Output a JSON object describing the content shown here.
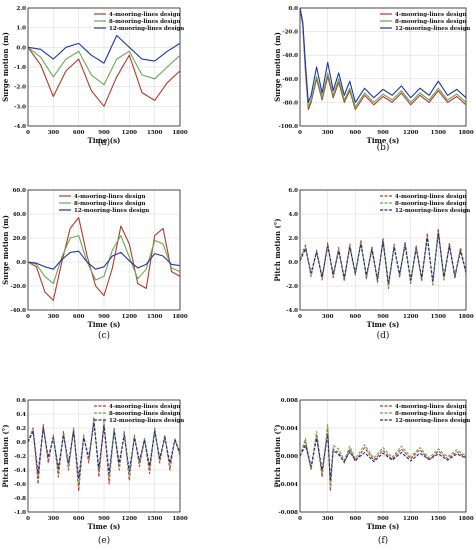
{
  "chart_data": [
    {
      "panel": "(a)",
      "type": "line",
      "ylabel": "Surge motion (m)",
      "xlabel": "Time (s)",
      "xlim": [
        0,
        1800
      ],
      "ylim": [
        -4.0,
        2.0
      ],
      "xticks": [
        "0",
        "300",
        "600",
        "900",
        "1200",
        "1500",
        "1800"
      ],
      "yticks": [
        "2.0",
        "1.0",
        "0.0",
        "-1.0",
        "-2.0",
        "-3.0",
        "-4.0"
      ],
      "legend_position": "top-right",
      "line_style": "solid",
      "x": [
        0,
        150,
        300,
        450,
        600,
        750,
        900,
        1050,
        1200,
        1350,
        1500,
        1650,
        1800
      ],
      "series": [
        {
          "name": "4-mooring-lines design",
          "color": "#b03a2e",
          "values": [
            0.0,
            -0.9,
            -2.5,
            -1.2,
            -0.6,
            -2.2,
            -3.0,
            -1.5,
            -0.4,
            -2.3,
            -2.7,
            -1.8,
            -1.2
          ]
        },
        {
          "name": "8-mooring-lines design",
          "color": "#6aa84f",
          "values": [
            0.0,
            -0.5,
            -1.5,
            -0.6,
            -0.2,
            -1.4,
            -1.9,
            -0.6,
            -0.2,
            -1.4,
            -1.6,
            -1.0,
            -0.4
          ]
        },
        {
          "name": "12-mooring-lines design",
          "color": "#2233aa",
          "values": [
            0.0,
            -0.1,
            -0.6,
            0.0,
            0.2,
            -0.4,
            -0.8,
            0.6,
            0.0,
            -0.6,
            -0.7,
            -0.2,
            0.2
          ]
        }
      ]
    },
    {
      "panel": "(b)",
      "type": "line",
      "ylabel": "Surge motion (m)",
      "xlabel": "Time (s)",
      "xlim": [
        0,
        1800
      ],
      "ylim": [
        -100.0,
        0.0
      ],
      "xticks": [
        "0",
        "300",
        "600",
        "900",
        "1200",
        "1500",
        "1800"
      ],
      "yticks": [
        "0.0",
        "-20.0",
        "-40.0",
        "-60.0",
        "-80.0",
        "-100.0"
      ],
      "legend_position": "top-right",
      "line_style": "solid",
      "x": [
        0,
        30,
        60,
        90,
        120,
        180,
        240,
        300,
        360,
        420,
        480,
        540,
        600,
        700,
        800,
        900,
        1000,
        1100,
        1200,
        1300,
        1400,
        1500,
        1600,
        1700,
        1800
      ],
      "series": [
        {
          "name": "4-mooring-lines design",
          "color": "#b03a2e",
          "values": [
            0,
            -15,
            -55,
            -86,
            -80,
            -60,
            -78,
            -58,
            -76,
            -63,
            -80,
            -70,
            -86,
            -74,
            -82,
            -75,
            -80,
            -72,
            -82,
            -74,
            -80,
            -70,
            -80,
            -75,
            -82
          ]
        },
        {
          "name": "8-mooring-lines design",
          "color": "#6aa84f",
          "values": [
            0,
            -14,
            -52,
            -84,
            -78,
            -58,
            -76,
            -55,
            -74,
            -60,
            -78,
            -68,
            -84,
            -72,
            -80,
            -73,
            -78,
            -70,
            -80,
            -72,
            -78,
            -68,
            -78,
            -73,
            -80
          ]
        },
        {
          "name": "12-mooring-lines design",
          "color": "#2233aa",
          "values": [
            0,
            -12,
            -48,
            -80,
            -74,
            -50,
            -72,
            -46,
            -70,
            -55,
            -74,
            -62,
            -80,
            -68,
            -76,
            -69,
            -74,
            -66,
            -76,
            -68,
            -74,
            -62,
            -74,
            -69,
            -76
          ]
        }
      ]
    },
    {
      "panel": "(c)",
      "type": "line",
      "ylabel": "Surge motion (m)",
      "xlabel": "Time (s)",
      "xlim": [
        0,
        1800
      ],
      "ylim": [
        -40.0,
        60.0
      ],
      "xticks": [
        "0",
        "300",
        "600",
        "900",
        "1200",
        "1500",
        "1800"
      ],
      "yticks": [
        "60.0",
        "40.0",
        "20.0",
        "0.0",
        "-20.0",
        "-40.0"
      ],
      "legend_position": "top-center",
      "line_style": "solid",
      "x": [
        0,
        100,
        200,
        300,
        400,
        500,
        600,
        700,
        800,
        900,
        1000,
        1100,
        1200,
        1300,
        1400,
        1500,
        1600,
        1700,
        1800
      ],
      "series": [
        {
          "name": "4-mooring-lines design",
          "color": "#b03a2e",
          "values": [
            0,
            -4,
            -25,
            -32,
            0,
            28,
            37,
            5,
            -20,
            -28,
            -5,
            30,
            15,
            -18,
            -22,
            22,
            28,
            -8,
            -12
          ]
        },
        {
          "name": "8-mooring-lines design",
          "color": "#6aa84f",
          "values": [
            0,
            -2,
            -12,
            -18,
            4,
            20,
            22,
            0,
            -15,
            -12,
            10,
            22,
            4,
            -14,
            -6,
            18,
            15,
            -5,
            -8
          ]
        },
        {
          "name": "12-mooring-lines design",
          "color": "#2233aa",
          "values": [
            0,
            -1,
            -4,
            -6,
            2,
            8,
            9,
            0,
            -6,
            -4,
            5,
            8,
            1,
            -5,
            -2,
            7,
            5,
            -2,
            -3
          ]
        }
      ]
    },
    {
      "panel": "(d)",
      "type": "line",
      "ylabel": "Pitch motion (°)",
      "xlabel": "Time (s)",
      "xlim": [
        0,
        1800
      ],
      "ylim": [
        -4.0,
        6.0
      ],
      "xticks": [
        "0",
        "300",
        "600",
        "900",
        "1200",
        "1500",
        "1800"
      ],
      "yticks": [
        "6.0",
        "4.0",
        "2.0",
        "0.0",
        "-2.0",
        "-4.0"
      ],
      "legend_position": "top-right",
      "line_style": "dashed",
      "x": [
        0,
        60,
        120,
        180,
        240,
        300,
        360,
        420,
        480,
        540,
        600,
        660,
        720,
        780,
        840,
        900,
        960,
        1020,
        1080,
        1140,
        1200,
        1260,
        1320,
        1380,
        1440,
        1500,
        1560,
        1620,
        1680,
        1740,
        1800
      ],
      "series": [
        {
          "name": "4-mooring-lines design",
          "color": "#c0392b",
          "values": [
            0.2,
            1.4,
            -1.2,
            1.0,
            -1.5,
            1.6,
            -1.3,
            1.2,
            -1.6,
            1.5,
            -1.1,
            1.8,
            -1.4,
            1.3,
            -1.7,
            2.0,
            -2.2,
            1.5,
            -1.3,
            1.7,
            -1.8,
            1.4,
            -1.6,
            2.4,
            -1.9,
            2.8,
            -1.5,
            1.6,
            -1.4,
            1.2,
            -1.0
          ]
        },
        {
          "name": "8-mooring-lines design",
          "color": "#6aa84f",
          "values": [
            0.1,
            1.2,
            -1.0,
            0.9,
            -1.3,
            1.4,
            -1.1,
            1.0,
            -1.4,
            1.3,
            -1.0,
            1.6,
            -1.2,
            1.1,
            -1.5,
            1.8,
            -1.9,
            1.3,
            -1.1,
            1.5,
            -1.6,
            1.2,
            -1.4,
            2.1,
            -1.7,
            2.5,
            -1.3,
            1.4,
            -1.2,
            1.0,
            -0.9
          ]
        },
        {
          "name": "12-mooring-lines design",
          "color": "#1f2d8a",
          "values": [
            0.1,
            1.1,
            -0.9,
            0.8,
            -1.2,
            1.3,
            -1.0,
            0.9,
            -1.3,
            1.2,
            -0.9,
            1.5,
            -1.1,
            1.0,
            -1.4,
            1.7,
            -1.8,
            1.2,
            -1.0,
            1.4,
            -1.5,
            1.1,
            -1.3,
            2.0,
            -1.6,
            2.4,
            -1.2,
            1.3,
            -1.1,
            0.9,
            -0.8
          ]
        }
      ]
    },
    {
      "panel": "(e)",
      "type": "line",
      "ylabel": "Pitch motion (°)",
      "xlabel": "Time (s)",
      "xlim": [
        0,
        1800
      ],
      "ylim": [
        -1.0,
        0.6
      ],
      "xticks": [
        "0",
        "300",
        "600",
        "900",
        "1200",
        "1500",
        "1800"
      ],
      "yticks": [
        "0.6",
        "0.4",
        "0.2",
        "0.0",
        "-0.2",
        "-0.4",
        "-0.6",
        "-0.8",
        "-1.0"
      ],
      "legend_position": "top-right",
      "line_style": "dashed",
      "x": [
        0,
        60,
        120,
        180,
        240,
        300,
        360,
        420,
        480,
        540,
        600,
        660,
        720,
        780,
        840,
        900,
        960,
        1020,
        1080,
        1140,
        1200,
        1260,
        1320,
        1380,
        1440,
        1500,
        1560,
        1620,
        1680,
        1740,
        1800
      ],
      "series": [
        {
          "name": "4-mooring-lines design",
          "color": "#c0392b",
          "values": [
            0.0,
            0.2,
            -0.6,
            0.25,
            -0.3,
            0.1,
            -0.5,
            0.15,
            -0.4,
            0.2,
            -0.7,
            0.1,
            -0.3,
            0.35,
            -0.5,
            0.3,
            -0.6,
            0.2,
            -0.4,
            0.15,
            -0.55,
            0.1,
            -0.35,
            0.05,
            -0.45,
            0.2,
            -0.3,
            0.1,
            -0.4,
            0.05,
            -0.2
          ]
        },
        {
          "name": "8-mooring-lines design",
          "color": "#6aa84f",
          "values": [
            0.0,
            0.18,
            -0.5,
            0.22,
            -0.25,
            0.08,
            -0.42,
            0.12,
            -0.35,
            0.18,
            -0.6,
            0.08,
            -0.25,
            0.3,
            -0.42,
            0.26,
            -0.5,
            0.18,
            -0.35,
            0.12,
            -0.48,
            0.08,
            -0.3,
            0.04,
            -0.38,
            0.18,
            -0.26,
            0.08,
            -0.34,
            0.04,
            -0.18
          ]
        },
        {
          "name": "12-mooring-lines design",
          "color": "#1f2d8a",
          "values": [
            0.0,
            0.15,
            -0.45,
            0.2,
            -0.22,
            0.06,
            -0.38,
            0.1,
            -0.3,
            0.15,
            -0.52,
            0.06,
            -0.22,
            0.27,
            -0.38,
            0.23,
            -0.45,
            0.15,
            -0.3,
            0.1,
            -0.42,
            0.06,
            -0.27,
            0.03,
            -0.34,
            0.15,
            -0.23,
            0.06,
            -0.3,
            0.03,
            -0.15
          ]
        }
      ]
    },
    {
      "panel": "(f)",
      "type": "line",
      "ylabel": "Pitch motion (°)",
      "xlabel": "Time (s)",
      "xlim": [
        0,
        1800
      ],
      "ylim": [
        -0.008,
        0.008
      ],
      "xticks": [
        "0",
        "300",
        "600",
        "900",
        "1200",
        "1500",
        "1800"
      ],
      "yticks": [
        "0.008",
        "0.004",
        "0.000",
        "-0.004",
        "-0.008"
      ],
      "legend_position": "top-right",
      "line_style": "dashed",
      "x": [
        0,
        60,
        120,
        180,
        240,
        300,
        330,
        360,
        420,
        480,
        540,
        600,
        700,
        800,
        900,
        1000,
        1100,
        1200,
        1300,
        1400,
        1500,
        1600,
        1700,
        1800
      ],
      "series": [
        {
          "name": "4-mooring-lines design",
          "color": "#c0392b",
          "values": [
            0.0,
            0.002,
            -0.002,
            0.003,
            -0.003,
            0.004,
            -0.005,
            0.001,
            0.0005,
            -0.001,
            0.001,
            -0.0008,
            0.0012,
            -0.0006,
            0.0008,
            -0.0005,
            0.001,
            -0.0004,
            0.0009,
            -0.0006,
            0.0007,
            -0.0004,
            0.0006,
            -0.0002
          ]
        },
        {
          "name": "8-mooring-lines design",
          "color": "#6aa84f",
          "values": [
            0.0,
            0.0025,
            -0.0018,
            0.0035,
            -0.0025,
            0.0045,
            -0.0042,
            0.0015,
            0.001,
            -0.0006,
            0.0014,
            -0.0004,
            0.0016,
            -0.0003,
            0.0012,
            -0.0002,
            0.0014,
            -0.0001,
            0.0012,
            -0.0003,
            0.001,
            -0.0001,
            0.0009,
            0.0
          ]
        },
        {
          "name": "12-mooring-lines design",
          "color": "#1f2d8a",
          "values": [
            0.0,
            0.0015,
            -0.0015,
            0.0025,
            -0.002,
            0.003,
            -0.0035,
            0.0008,
            0.0002,
            -0.0008,
            0.0006,
            -0.0006,
            0.0005,
            -0.0008,
            0.0004,
            -0.0006,
            0.0005,
            -0.0007,
            0.0004,
            -0.0005,
            0.0003,
            -0.0006,
            0.0003,
            -0.0003
          ]
        }
      ]
    }
  ]
}
